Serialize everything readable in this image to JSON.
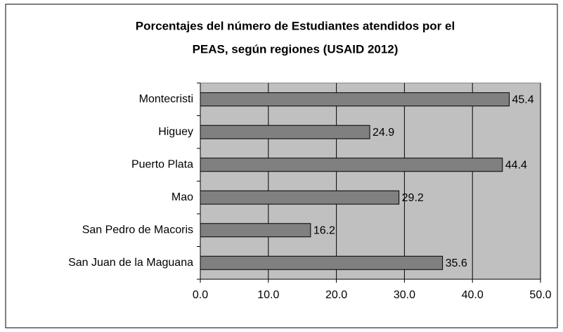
{
  "chart_data": {
    "type": "hbar",
    "title": [
      "Porcentajes del número de Estudiantes atendidos por el",
      "PEAS, según regiones (USAID 2012)"
    ],
    "categories": [
      "Montecristi",
      "Higuey",
      "Puerto Plata",
      "Mao",
      "San Pedro de Macoris",
      "San Juan de la Maguana"
    ],
    "values": [
      45.4,
      24.9,
      44.4,
      29.2,
      16.2,
      35.6
    ],
    "color": "#808080",
    "xlim": [
      0,
      50
    ],
    "xticks": [
      {
        "value": 0,
        "label": "0.0"
      },
      {
        "value": 10,
        "label": "10.0"
      },
      {
        "value": 20,
        "label": "20.0"
      },
      {
        "value": 30,
        "label": "30.0"
      },
      {
        "value": 40,
        "label": "40.0"
      },
      {
        "value": 50,
        "label": "50.0"
      }
    ],
    "grid": true
  }
}
